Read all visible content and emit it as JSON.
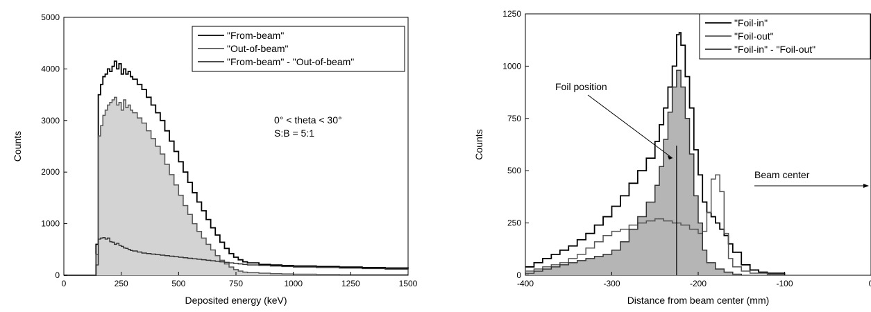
{
  "chart_data": [
    {
      "type": "line",
      "xlabel": "Deposited energy (keV)",
      "ylabel": "Counts",
      "xlim": [
        0,
        1500
      ],
      "ylim": [
        0,
        5000
      ],
      "xticks": [
        "0",
        "250",
        "500",
        "750",
        "1000",
        "1250",
        "1500"
      ],
      "yticks": [
        "0",
        "1000",
        "2000",
        "3000",
        "4000",
        "5000"
      ],
      "grid": false,
      "legend_position": "top-right",
      "annotations": [
        "0° < theta < 30°",
        "S:B = 5:1"
      ],
      "series": [
        {
          "name": "\"From-beam\"",
          "color": "#000000",
          "style": "step",
          "x": [
            0,
            130,
            140,
            150,
            160,
            170,
            180,
            190,
            200,
            210,
            220,
            230,
            240,
            250,
            260,
            270,
            280,
            290,
            300,
            320,
            340,
            360,
            380,
            400,
            420,
            440,
            460,
            480,
            500,
            520,
            540,
            560,
            580,
            600,
            620,
            640,
            660,
            680,
            700,
            720,
            740,
            760,
            780,
            800,
            850,
            900,
            950,
            1000,
            1100,
            1200,
            1300,
            1400,
            1500
          ],
          "y": [
            0,
            0,
            600,
            3500,
            3700,
            3850,
            3900,
            4000,
            3950,
            4050,
            4150,
            4000,
            4100,
            3900,
            4000,
            3900,
            3950,
            3850,
            3800,
            3700,
            3600,
            3450,
            3300,
            3150,
            3000,
            2800,
            2600,
            2400,
            2200,
            2000,
            1800,
            1600,
            1420,
            1250,
            1080,
            920,
            780,
            640,
            520,
            420,
            350,
            300,
            260,
            240,
            210,
            200,
            190,
            180,
            170,
            160,
            150,
            140,
            130
          ]
        },
        {
          "name": "\"Out-of-beam\"",
          "color": "#555555",
          "style": "step",
          "fill": "#d3d3d3",
          "x": [
            0,
            130,
            140,
            150,
            160,
            170,
            180,
            190,
            200,
            210,
            220,
            230,
            240,
            250,
            260,
            270,
            280,
            290,
            300,
            320,
            340,
            360,
            380,
            400,
            420,
            440,
            460,
            480,
            500,
            520,
            540,
            560,
            580,
            600,
            620,
            640,
            660,
            680,
            700,
            720,
            740,
            760,
            780,
            800,
            850,
            900,
            950,
            1000,
            1100,
            1200,
            1300,
            1400,
            1500
          ],
          "y": [
            0,
            0,
            400,
            2700,
            2900,
            3100,
            3200,
            3300,
            3350,
            3400,
            3450,
            3300,
            3350,
            3200,
            3400,
            3250,
            3300,
            3200,
            3150,
            3050,
            2950,
            2800,
            2650,
            2500,
            2350,
            2150,
            1950,
            1750,
            1550,
            1350,
            1180,
            1000,
            850,
            720,
            600,
            490,
            380,
            290,
            220,
            160,
            110,
            80,
            60,
            50,
            40,
            30,
            25,
            20,
            15,
            10,
            10,
            10,
            10
          ]
        },
        {
          "name": "\"From-beam\" - \"Out-of-beam\"",
          "color": "#333333",
          "style": "step",
          "x": [
            0,
            130,
            140,
            150,
            160,
            170,
            180,
            190,
            200,
            210,
            220,
            230,
            240,
            250,
            260,
            270,
            280,
            290,
            300,
            320,
            340,
            360,
            380,
            400,
            420,
            440,
            460,
            480,
            500,
            520,
            540,
            560,
            580,
            600,
            620,
            640,
            660,
            680,
            700,
            720,
            740,
            760,
            780,
            800,
            850,
            900,
            950,
            1000,
            1100,
            1200,
            1300,
            1400,
            1500
          ],
          "y": [
            0,
            0,
            200,
            700,
            720,
            730,
            700,
            720,
            650,
            640,
            600,
            620,
            580,
            560,
            530,
            520,
            500,
            480,
            470,
            450,
            430,
            420,
            410,
            400,
            390,
            380,
            370,
            360,
            350,
            340,
            330,
            320,
            310,
            300,
            290,
            280,
            270,
            260,
            250,
            240,
            230,
            220,
            210,
            200,
            190,
            180,
            170,
            160,
            150,
            140,
            130,
            120,
            110
          ]
        }
      ]
    },
    {
      "type": "line",
      "xlabel": "Distance from beam center (mm)",
      "ylabel": "Counts",
      "xlim": [
        -400,
        0
      ],
      "ylim": [
        0,
        1250
      ],
      "xticks": [
        "-400",
        "-300",
        "-200",
        "-100",
        "0"
      ],
      "yticks": [
        "0",
        "250",
        "500",
        "750",
        "1000",
        "1250"
      ],
      "grid": false,
      "legend_position": "top-right",
      "annotations": [
        "Foil position",
        "Beam center"
      ],
      "series": [
        {
          "name": "\"Foil-in\"",
          "color": "#000000",
          "style": "step",
          "x": [
            -400,
            -390,
            -380,
            -370,
            -360,
            -350,
            -340,
            -330,
            -320,
            -310,
            -300,
            -290,
            -280,
            -270,
            -260,
            -250,
            -245,
            -240,
            -235,
            -230,
            -225,
            -222,
            -220,
            -215,
            -210,
            -205,
            -200,
            -195,
            -190,
            -185,
            -180,
            -175,
            -170,
            -165,
            -160,
            -150,
            -140,
            -130,
            -120,
            -110,
            -100
          ],
          "y": [
            40,
            60,
            80,
            100,
            120,
            140,
            170,
            200,
            240,
            280,
            330,
            380,
            440,
            500,
            560,
            640,
            720,
            800,
            900,
            1000,
            1150,
            1160,
            1100,
            950,
            800,
            600,
            480,
            350,
            300,
            280,
            250,
            220,
            190,
            150,
            110,
            50,
            25,
            15,
            10,
            10,
            0
          ]
        },
        {
          "name": "\"Foil-out\"",
          "color": "#555555",
          "style": "step",
          "x": [
            -400,
            -390,
            -380,
            -370,
            -360,
            -350,
            -340,
            -330,
            -320,
            -310,
            -300,
            -290,
            -280,
            -270,
            -260,
            -250,
            -240,
            -230,
            -220,
            -210,
            -200,
            -195,
            -190,
            -185,
            -180,
            -175,
            -170,
            -165,
            -160,
            -150,
            -140,
            -130,
            -120,
            -110,
            -100
          ],
          "y": [
            20,
            30,
            40,
            50,
            60,
            80,
            100,
            130,
            160,
            190,
            210,
            220,
            240,
            250,
            260,
            270,
            260,
            250,
            240,
            220,
            200,
            210,
            300,
            460,
            480,
            400,
            200,
            80,
            40,
            20,
            10,
            10,
            5,
            5,
            0
          ]
        },
        {
          "name": "\"Foil-in\" - \"Foil-out\"",
          "color": "#333333",
          "style": "step",
          "fill": "#b5b5b5",
          "x": [
            -400,
            -390,
            -380,
            -370,
            -360,
            -350,
            -340,
            -330,
            -320,
            -310,
            -300,
            -290,
            -280,
            -270,
            -260,
            -250,
            -245,
            -240,
            -235,
            -230,
            -225,
            -220,
            -215,
            -210,
            -205,
            -200,
            -195,
            -190,
            -180,
            -170,
            -160,
            -150
          ],
          "y": [
            10,
            20,
            30,
            40,
            50,
            60,
            70,
            80,
            90,
            100,
            120,
            160,
            220,
            280,
            350,
            430,
            520,
            650,
            780,
            900,
            980,
            900,
            750,
            580,
            380,
            250,
            120,
            60,
            30,
            15,
            5,
            0
          ]
        }
      ]
    }
  ]
}
